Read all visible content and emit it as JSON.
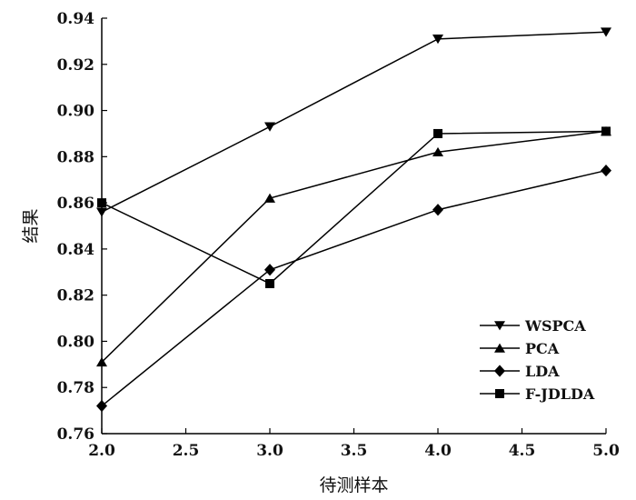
{
  "chart_data": {
    "type": "line",
    "title": "",
    "xlabel": "待测样本",
    "ylabel": "结果",
    "xlim": [
      2.0,
      5.0
    ],
    "ylim": [
      0.76,
      0.94
    ],
    "xticks": [
      "2.0",
      "2.5",
      "3.0",
      "3.5",
      "4.0",
      "4.5",
      "5.0"
    ],
    "yticks": [
      "0.76",
      "0.78",
      "0.80",
      "0.82",
      "0.84",
      "0.86",
      "0.88",
      "0.90",
      "0.92",
      "0.94"
    ],
    "grid": false,
    "legend_position": "bottom-right",
    "x": [
      2.0,
      3.0,
      4.0,
      5.0
    ],
    "series": [
      {
        "name": "WSPCA",
        "marker": "triangle-down",
        "values": [
          0.856,
          0.893,
          0.931,
          0.934
        ]
      },
      {
        "name": "PCA",
        "marker": "triangle-up",
        "values": [
          0.791,
          0.862,
          0.882,
          0.891
        ]
      },
      {
        "name": "LDA",
        "marker": "diamond",
        "values": [
          0.772,
          0.831,
          0.857,
          0.874
        ]
      },
      {
        "name": "F-JDLDA",
        "marker": "square",
        "values": [
          0.86,
          0.825,
          0.89,
          0.891
        ]
      }
    ],
    "color": "#000000"
  }
}
